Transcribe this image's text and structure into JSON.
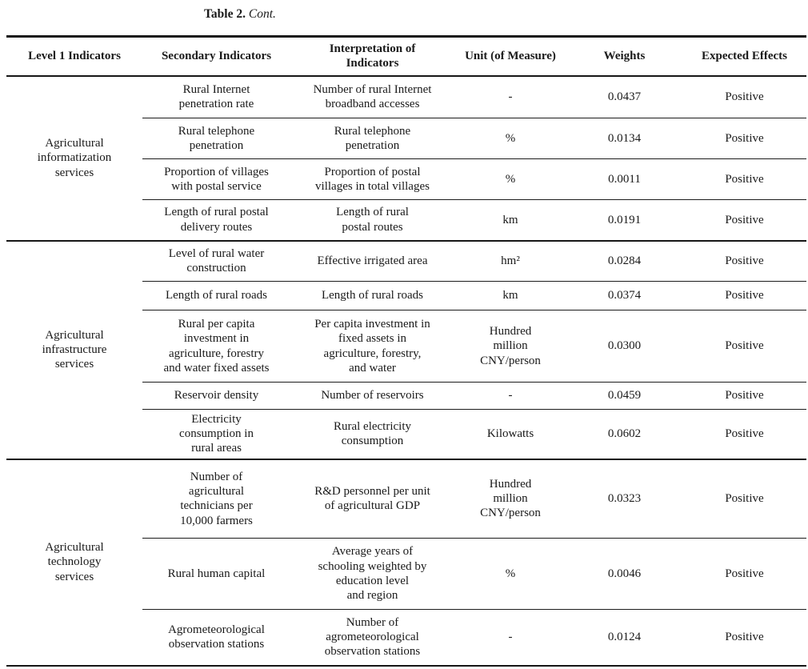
{
  "title": {
    "label": "Table 2.",
    "cont": "Cont."
  },
  "table": {
    "columns": [
      "Level 1 Indicators",
      "Secondary Indicators",
      "Interpretation of\nIndicators",
      "Unit (of Measure)",
      "Weights",
      "Expected Effects"
    ],
    "groups": [
      {
        "level1": "Agricultural\ninformatization\nservices",
        "rows": [
          {
            "secondary": "Rural Internet\npenetration rate",
            "interpretation": "Number of rural Internet\nbroadband accesses",
            "unit": "-",
            "weight": "0.0437",
            "effect": "Positive"
          },
          {
            "secondary": "Rural telephone\npenetration",
            "interpretation": "Rural telephone\npenetration",
            "unit": "%",
            "weight": "0.0134",
            "effect": "Positive"
          },
          {
            "secondary": "Proportion of villages\nwith postal service",
            "interpretation": "Proportion of postal\nvillages in total villages",
            "unit": "%",
            "weight": "0.0011",
            "effect": "Positive"
          },
          {
            "secondary": "Length of rural postal\ndelivery routes",
            "interpretation": "Length of rural\npostal routes",
            "unit": "km",
            "weight": "0.0191",
            "effect": "Positive"
          }
        ]
      },
      {
        "level1": "Agricultural\ninfrastructure\nservices",
        "rows": [
          {
            "secondary": "Level of rural water\nconstruction",
            "interpretation": "Effective irrigated area",
            "unit": "hm²",
            "weight": "0.0284",
            "effect": "Positive"
          },
          {
            "secondary": "Length of rural roads",
            "interpretation": "Length of rural roads",
            "unit": "km",
            "weight": "0.0374",
            "effect": "Positive"
          },
          {
            "secondary": "Rural per capita\ninvestment in\nagriculture, forestry\nand water fixed assets",
            "interpretation": "Per capita investment in\nfixed assets in\nagriculture, forestry,\nand water",
            "unit": "Hundred\nmillion\nCNY/person",
            "weight": "0.0300",
            "effect": "Positive"
          },
          {
            "secondary": "Reservoir density",
            "interpretation": "Number of reservoirs",
            "unit": "-",
            "weight": "0.0459",
            "effect": "Positive"
          },
          {
            "secondary": "Electricity\nconsumption in\nrural areas",
            "interpretation": "Rural electricity\nconsumption",
            "unit": "Kilowatts",
            "weight": "0.0602",
            "effect": "Positive"
          }
        ]
      },
      {
        "level1": "Agricultural\ntechnology\nservices",
        "rows": [
          {
            "secondary": "Number of\nagricultural\ntechnicians per\n10,000 farmers",
            "interpretation": "R&D personnel per unit\nof agricultural GDP",
            "unit": "Hundred\nmillion\nCNY/person",
            "weight": "0.0323",
            "effect": "Positive"
          },
          {
            "secondary": "Rural human capital",
            "interpretation": "Average years of\nschooling weighted by\neducation level\nand region",
            "unit": "%",
            "weight": "0.0046",
            "effect": "Positive"
          },
          {
            "secondary": "Agrometeorological\nobservation stations",
            "interpretation": "Number of\nagrometeorological\nobservation stations",
            "unit": "-",
            "weight": "0.0124",
            "effect": "Positive"
          }
        ]
      }
    ]
  }
}
